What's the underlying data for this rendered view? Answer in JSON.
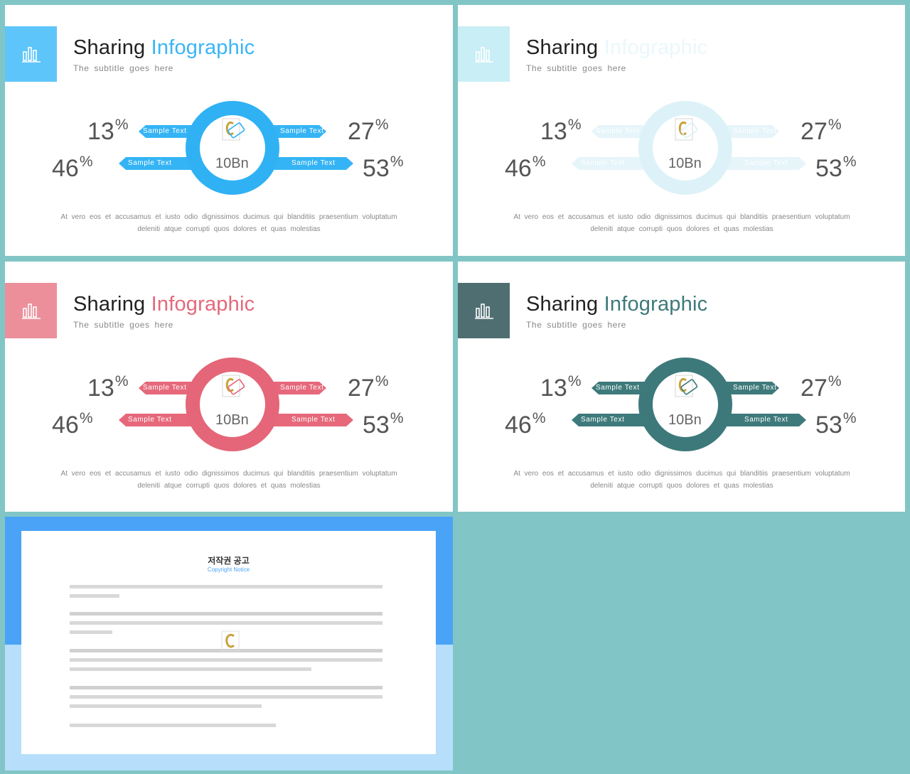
{
  "slides": [
    {
      "title_main": "Sharing",
      "title_accent": "Infographic",
      "subtitle": "The subtitle goes here",
      "stats": {
        "tl": "13",
        "tr": "27",
        "bl": "46",
        "br": "53",
        "unit": "%"
      },
      "labels": {
        "tl": "Sample Text",
        "tr": "Sample Text",
        "bl": "Sample Text",
        "br": "Sample Text"
      },
      "center_value": "10Bn",
      "paragraph": [
        "At vero eos et accusamus et iusto odio dignissimos ducimus qui blanditiis praesentium voluptatum",
        "deleniti atque corrupti quos dolores et quas molestias"
      ],
      "colors": {
        "accent": "#3ab5f5",
        "tag": "#5ec5fa",
        "arrow": "#35b4f5",
        "ring": "#2fb1f4"
      }
    },
    {
      "title_main": "Sharing",
      "title_accent": "Infographic",
      "subtitle": "The subtitle goes here",
      "stats": {
        "tl": "13",
        "tr": "27",
        "bl": "46",
        "br": "53",
        "unit": "%"
      },
      "labels": {
        "tl": "Sample Text",
        "tr": "Sample Text",
        "bl": "Sample Text",
        "br": "Sample Text"
      },
      "center_value": "10Bn",
      "paragraph": [
        "At vero eos et accusamus et iusto odio dignissimos ducimus qui blanditiis praesentium voluptatum",
        "deleniti atque corrupti quos dolores et quas molestias"
      ],
      "colors": {
        "accent": "#eaf7fb",
        "tag": "#c9eef5",
        "arrow": "#e6f5fa",
        "ring": "#ddf2f8"
      }
    },
    {
      "title_main": "Sharing",
      "title_accent": "Infographic",
      "subtitle": "The subtitle goes here",
      "stats": {
        "tl": "13",
        "tr": "27",
        "bl": "46",
        "br": "53",
        "unit": "%"
      },
      "labels": {
        "tl": "Sample Text",
        "tr": "Sample Text",
        "bl": "Sample Text",
        "br": "Sample Text"
      },
      "center_value": "10Bn",
      "paragraph": [
        "At vero eos et accusamus et iusto odio dignissimos ducimus qui blanditiis praesentium voluptatum",
        "deleniti atque corrupti quos dolores et quas molestias"
      ],
      "colors": {
        "accent": "#e3697c",
        "tag": "#ec8f9b",
        "arrow": "#e6687a",
        "ring": "#e46678"
      }
    },
    {
      "title_main": "Sharing",
      "title_accent": "Infographic",
      "subtitle": "The subtitle goes here",
      "stats": {
        "tl": "13",
        "tr": "27",
        "bl": "46",
        "br": "53",
        "unit": "%"
      },
      "labels": {
        "tl": "Sample Text",
        "tr": "Sample Text",
        "bl": "Sample Text",
        "br": "Sample Text"
      },
      "center_value": "10Bn",
      "paragraph": [
        "At vero eos et accusamus et iusto odio dignissimos ducimus qui blanditiis praesentium voluptatum",
        "deleniti atque corrupti quos dolores et quas molestias"
      ],
      "colors": {
        "accent": "#3d797a",
        "tag": "#4f6e72",
        "arrow": "#3e7a7b",
        "ring": "#3d797a"
      }
    }
  ],
  "notice": {
    "title": "저작권 공고",
    "subtitle": "Copyright Notice"
  },
  "icons": {
    "tag": "bar-chart-icon",
    "center": "credit-card-icon"
  }
}
